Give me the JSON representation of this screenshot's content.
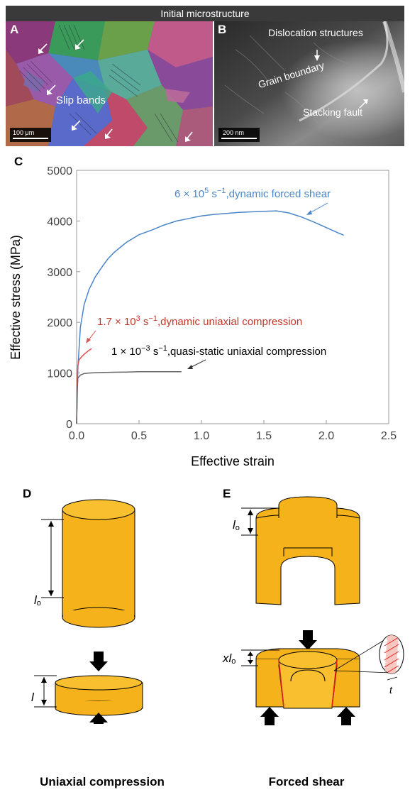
{
  "header": {
    "title": "Initial microstructure"
  },
  "panel_a": {
    "letter": "A",
    "label": "Slip bands",
    "scale": "100 μm"
  },
  "panel_b": {
    "letter": "B",
    "labels": {
      "dislocation": "Dislocation structures",
      "grain": "Grain boundary",
      "stacking": "Stacking fault"
    },
    "scale": "200 nm"
  },
  "panel_c": {
    "letter": "C"
  },
  "chart_data": {
    "type": "line",
    "xlabel": "Effective strain",
    "ylabel": "Effective stress (MPa)",
    "xlim": [
      0,
      2.5
    ],
    "ylim": [
      0,
      5000
    ],
    "xticks": [
      "0.0",
      "0.5",
      "1.0",
      "1.5",
      "2.0",
      "2.5"
    ],
    "yticks": [
      "0",
      "1000",
      "2000",
      "3000",
      "4000",
      "5000"
    ],
    "grid": false,
    "series": [
      {
        "name_parts": [
          "6 × 10",
          "5",
          " s",
          "−1",
          ",dynamic forced shear"
        ],
        "color": "#4a86c8",
        "x": [
          0,
          0.01,
          0.03,
          0.06,
          0.1,
          0.15,
          0.2,
          0.25,
          0.3,
          0.35,
          0.4,
          0.5,
          0.6,
          0.7,
          0.8,
          0.9,
          1.0,
          1.1,
          1.2,
          1.3,
          1.4,
          1.5,
          1.6,
          1.7,
          1.8,
          1.9,
          2.0,
          2.1,
          2.14
        ],
        "y": [
          0,
          1100,
          1900,
          2350,
          2650,
          2900,
          3080,
          3250,
          3380,
          3480,
          3580,
          3730,
          3820,
          3920,
          4000,
          4050,
          4100,
          4130,
          4150,
          4170,
          4180,
          4190,
          4200,
          4160,
          4080,
          3980,
          3870,
          3760,
          3720
        ]
      },
      {
        "name_parts": [
          "1.7 × 10",
          "3",
          " s",
          "−1",
          ",dynamic uniaxial compression"
        ],
        "color": "#d9534f",
        "x": [
          0,
          0.005,
          0.01,
          0.02,
          0.04,
          0.06,
          0.08,
          0.1,
          0.12
        ],
        "y": [
          0,
          900,
          1150,
          1260,
          1320,
          1370,
          1410,
          1450,
          1480
        ]
      },
      {
        "name_parts": [
          "1 × 10",
          "−3",
          " s",
          "−1",
          ",quasi-static uniaxial compression"
        ],
        "color": "#666666",
        "x": [
          0,
          0.005,
          0.01,
          0.03,
          0.06,
          0.1,
          0.2,
          0.3,
          0.4,
          0.5,
          0.6,
          0.7,
          0.8,
          0.84
        ],
        "y": [
          0,
          700,
          900,
          960,
          990,
          1000,
          1010,
          1015,
          1020,
          1025,
          1025,
          1025,
          1025,
          1025
        ]
      }
    ]
  },
  "panel_d": {
    "letter": "D",
    "length_label": "l",
    "length_sub": "o",
    "compressed_label": "l",
    "caption": "Uniaxial compression"
  },
  "panel_e": {
    "letter": "E",
    "length_label": "l",
    "length_sub": "o",
    "displacement_prefix": "x",
    "displacement_label": "l",
    "displacement_sub": "o",
    "thickness_label": "t",
    "caption": "Forced shear"
  }
}
